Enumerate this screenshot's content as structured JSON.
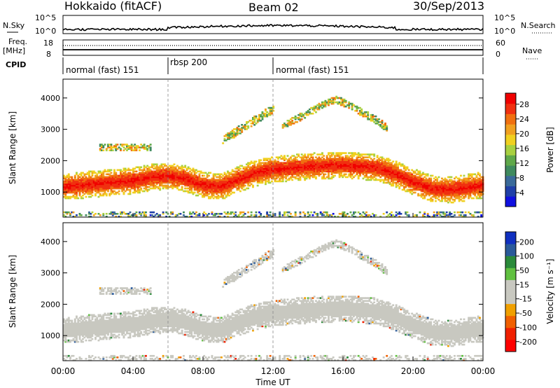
{
  "header": {
    "station": "Hokkaido (fitACF)",
    "beam": "Beam 02",
    "date": "30/Sep/2013"
  },
  "strip": {
    "nsky_label": "N.Sky",
    "nsearch_label": "N.Search",
    "nsky_ticks": [
      "10^5",
      "10^0"
    ],
    "freq_label_1": "Freq.",
    "freq_label_2": "[MHz]",
    "freq_ticks": [
      "18",
      "8"
    ],
    "nave_ticks": [
      "60",
      "0"
    ],
    "nave_label": "Nave",
    "cpid_label": "CPID"
  },
  "cpid_segments": [
    {
      "label": "normal (fast) 151",
      "start_hour": 0
    },
    {
      "label": "rbsp 200",
      "start_hour": 6
    },
    {
      "label": "normal (fast) 151",
      "start_hour": 12
    }
  ],
  "colors": {
    "power": [
      "#1010e0",
      "#2040a8",
      "#3a6a9a",
      "#3f8a5f",
      "#5fa84a",
      "#a8d040",
      "#f0d020",
      "#f0a020",
      "#f07010",
      "#f03010",
      "#f00000"
    ],
    "velocity": [
      "#ff0000",
      "#f02000",
      "#f06000",
      "#f0a000",
      "#c8c8c0",
      "#c8c8c0",
      "#60c040",
      "#2a8a3a",
      "#2a5a9a",
      "#1030c0"
    ]
  },
  "chart_data": [
    {
      "type": "heatmap",
      "name": "power",
      "ylabel": "Slant Range [km]",
      "xlabel": "Time UT",
      "xlim": [
        0,
        24
      ],
      "ylim": [
        200,
        4600
      ],
      "x_ticks": [
        "00:00",
        "04:00",
        "08:00",
        "12:00",
        "16:00",
        "20:00",
        "00:00"
      ],
      "y_ticks": [
        1000,
        2000,
        3000,
        4000
      ],
      "colorbar": {
        "label": "Power [dB]",
        "ticks": [
          "4",
          "8",
          "12",
          "16",
          "20",
          "24",
          "28"
        ],
        "range": [
          0,
          30
        ]
      },
      "band_center_km": [
        [
          0,
          1150
        ],
        [
          2,
          1250
        ],
        [
          4,
          1350
        ],
        [
          5,
          1450
        ],
        [
          6,
          1500
        ],
        [
          7,
          1400
        ],
        [
          8,
          1200
        ],
        [
          9,
          1150
        ],
        [
          10,
          1400
        ],
        [
          11,
          1600
        ],
        [
          12,
          1700
        ],
        [
          14,
          1800
        ],
        [
          16,
          1850
        ],
        [
          18,
          1750
        ],
        [
          19,
          1550
        ],
        [
          20,
          1300
        ],
        [
          21,
          1100
        ],
        [
          22,
          1050
        ],
        [
          24,
          1200
        ]
      ]
    },
    {
      "type": "heatmap",
      "name": "velocity",
      "ylabel": "Slant Range [km]",
      "xlabel": "Time UT",
      "xlim": [
        0,
        24
      ],
      "ylim": [
        200,
        4600
      ],
      "x_ticks": [
        "00:00",
        "04:00",
        "08:00",
        "12:00",
        "16:00",
        "20:00",
        "00:00"
      ],
      "y_ticks": [
        1000,
        2000,
        3000,
        4000
      ],
      "colorbar": {
        "label": "Velocity [m s⁻¹]",
        "ticks": [
          "200",
          "100",
          "50",
          "15",
          "-15",
          "-50",
          "-100",
          "-200"
        ],
        "range": [
          -250,
          250
        ]
      }
    }
  ]
}
